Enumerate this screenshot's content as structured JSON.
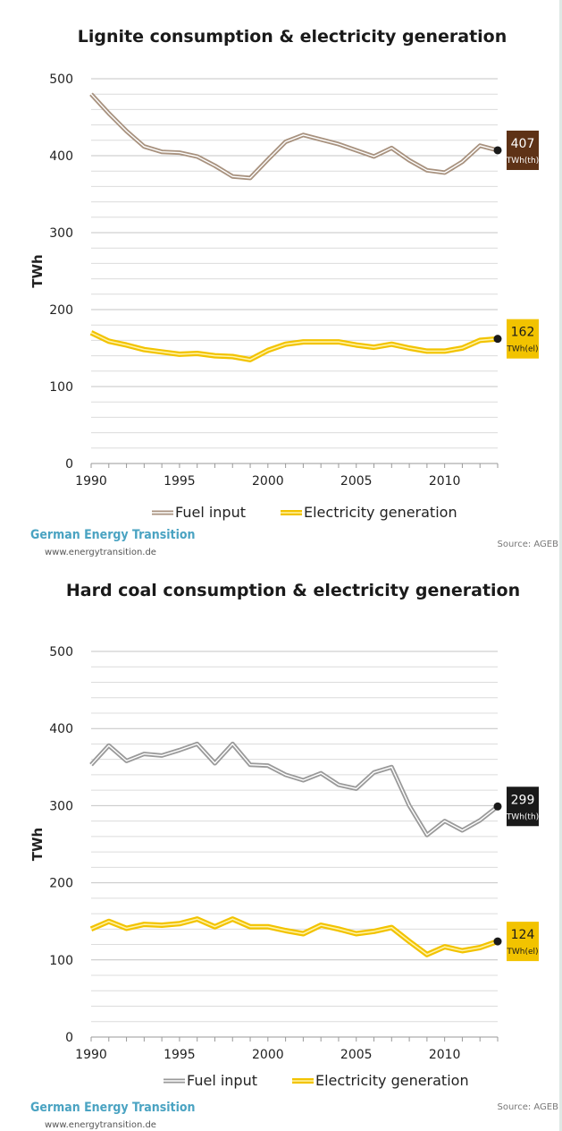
{
  "chart_data": [
    {
      "type": "line",
      "title": "Lignite consumption & electricity generation",
      "xlabel": "",
      "ylabel": "TWh",
      "xlim": [
        1990,
        2013
      ],
      "ylim": [
        0,
        500
      ],
      "x_ticks": [
        "1990",
        "1995",
        "2000",
        "2005",
        "2010"
      ],
      "y_ticks": [
        "0",
        "100",
        "200",
        "300",
        "400",
        "500"
      ],
      "grid": true,
      "legend_position": "bottom",
      "x": [
        1990,
        1991,
        1992,
        1993,
        1994,
        1995,
        1996,
        1997,
        1998,
        1999,
        2000,
        2001,
        2002,
        2003,
        2004,
        2005,
        2006,
        2007,
        2008,
        2009,
        2010,
        2011,
        2012,
        2013
      ],
      "series": [
        {
          "name": "Fuel input",
          "color": "#a8927f",
          "values": [
            480,
            455,
            432,
            412,
            405,
            404,
            399,
            387,
            373,
            371,
            395,
            418,
            427,
            421,
            415,
            407,
            399,
            410,
            394,
            381,
            378,
            392,
            413,
            407
          ],
          "end_label": {
            "value": "407",
            "unit": "TWh(th)",
            "badge_color": "#5e3216"
          }
        },
        {
          "name": "Electricity generation",
          "color": "#f2c300",
          "values": [
            170,
            159,
            154,
            148,
            145,
            142,
            143,
            140,
            139,
            135,
            147,
            155,
            158,
            158,
            158,
            154,
            151,
            155,
            150,
            146,
            146,
            150,
            160,
            162
          ],
          "end_label": {
            "value": "162",
            "unit": "TWh(el)",
            "badge_color": "#f2c300"
          }
        }
      ]
    },
    {
      "type": "line",
      "title": "Hard coal consumption & electricity generation",
      "xlabel": "",
      "ylabel": "TWh",
      "xlim": [
        1990,
        2013
      ],
      "ylim": [
        0,
        500
      ],
      "x_ticks": [
        "1990",
        "1995",
        "2000",
        "2005",
        "2010"
      ],
      "y_ticks": [
        "0",
        "100",
        "200",
        "300",
        "400",
        "500"
      ],
      "grid": true,
      "legend_position": "bottom",
      "x": [
        1990,
        1991,
        1992,
        1993,
        1994,
        1995,
        1996,
        1997,
        1998,
        1999,
        2000,
        2001,
        2002,
        2003,
        2004,
        2005,
        2006,
        2007,
        2008,
        2009,
        2010,
        2011,
        2012,
        2013
      ],
      "series": [
        {
          "name": "Fuel input",
          "color": "#9a9a9a",
          "values": [
            353,
            378,
            358,
            367,
            365,
            372,
            380,
            355,
            380,
            353,
            352,
            340,
            333,
            342,
            327,
            322,
            343,
            350,
            300,
            262,
            280,
            268,
            281,
            299
          ],
          "end_label": {
            "value": "299",
            "unit": "TWh(th)",
            "badge_color": "#1a1a1a"
          }
        },
        {
          "name": "Electricity generation",
          "color": "#f2c300",
          "values": [
            140,
            150,
            141,
            146,
            145,
            147,
            153,
            143,
            153,
            143,
            143,
            138,
            134,
            145,
            140,
            134,
            137,
            142,
            124,
            107,
            117,
            112,
            116,
            124
          ],
          "end_label": {
            "value": "124",
            "unit": "TWh(el)",
            "badge_color": "#f2c300"
          }
        }
      ]
    }
  ],
  "branding": [
    {
      "name": "German Energy Transition",
      "url": "www.energytransition.de",
      "source": "Source: AGEB"
    },
    {
      "name": "German Energy Transition",
      "url": "www.energytransition.de",
      "source": "Source: AGEB"
    }
  ]
}
